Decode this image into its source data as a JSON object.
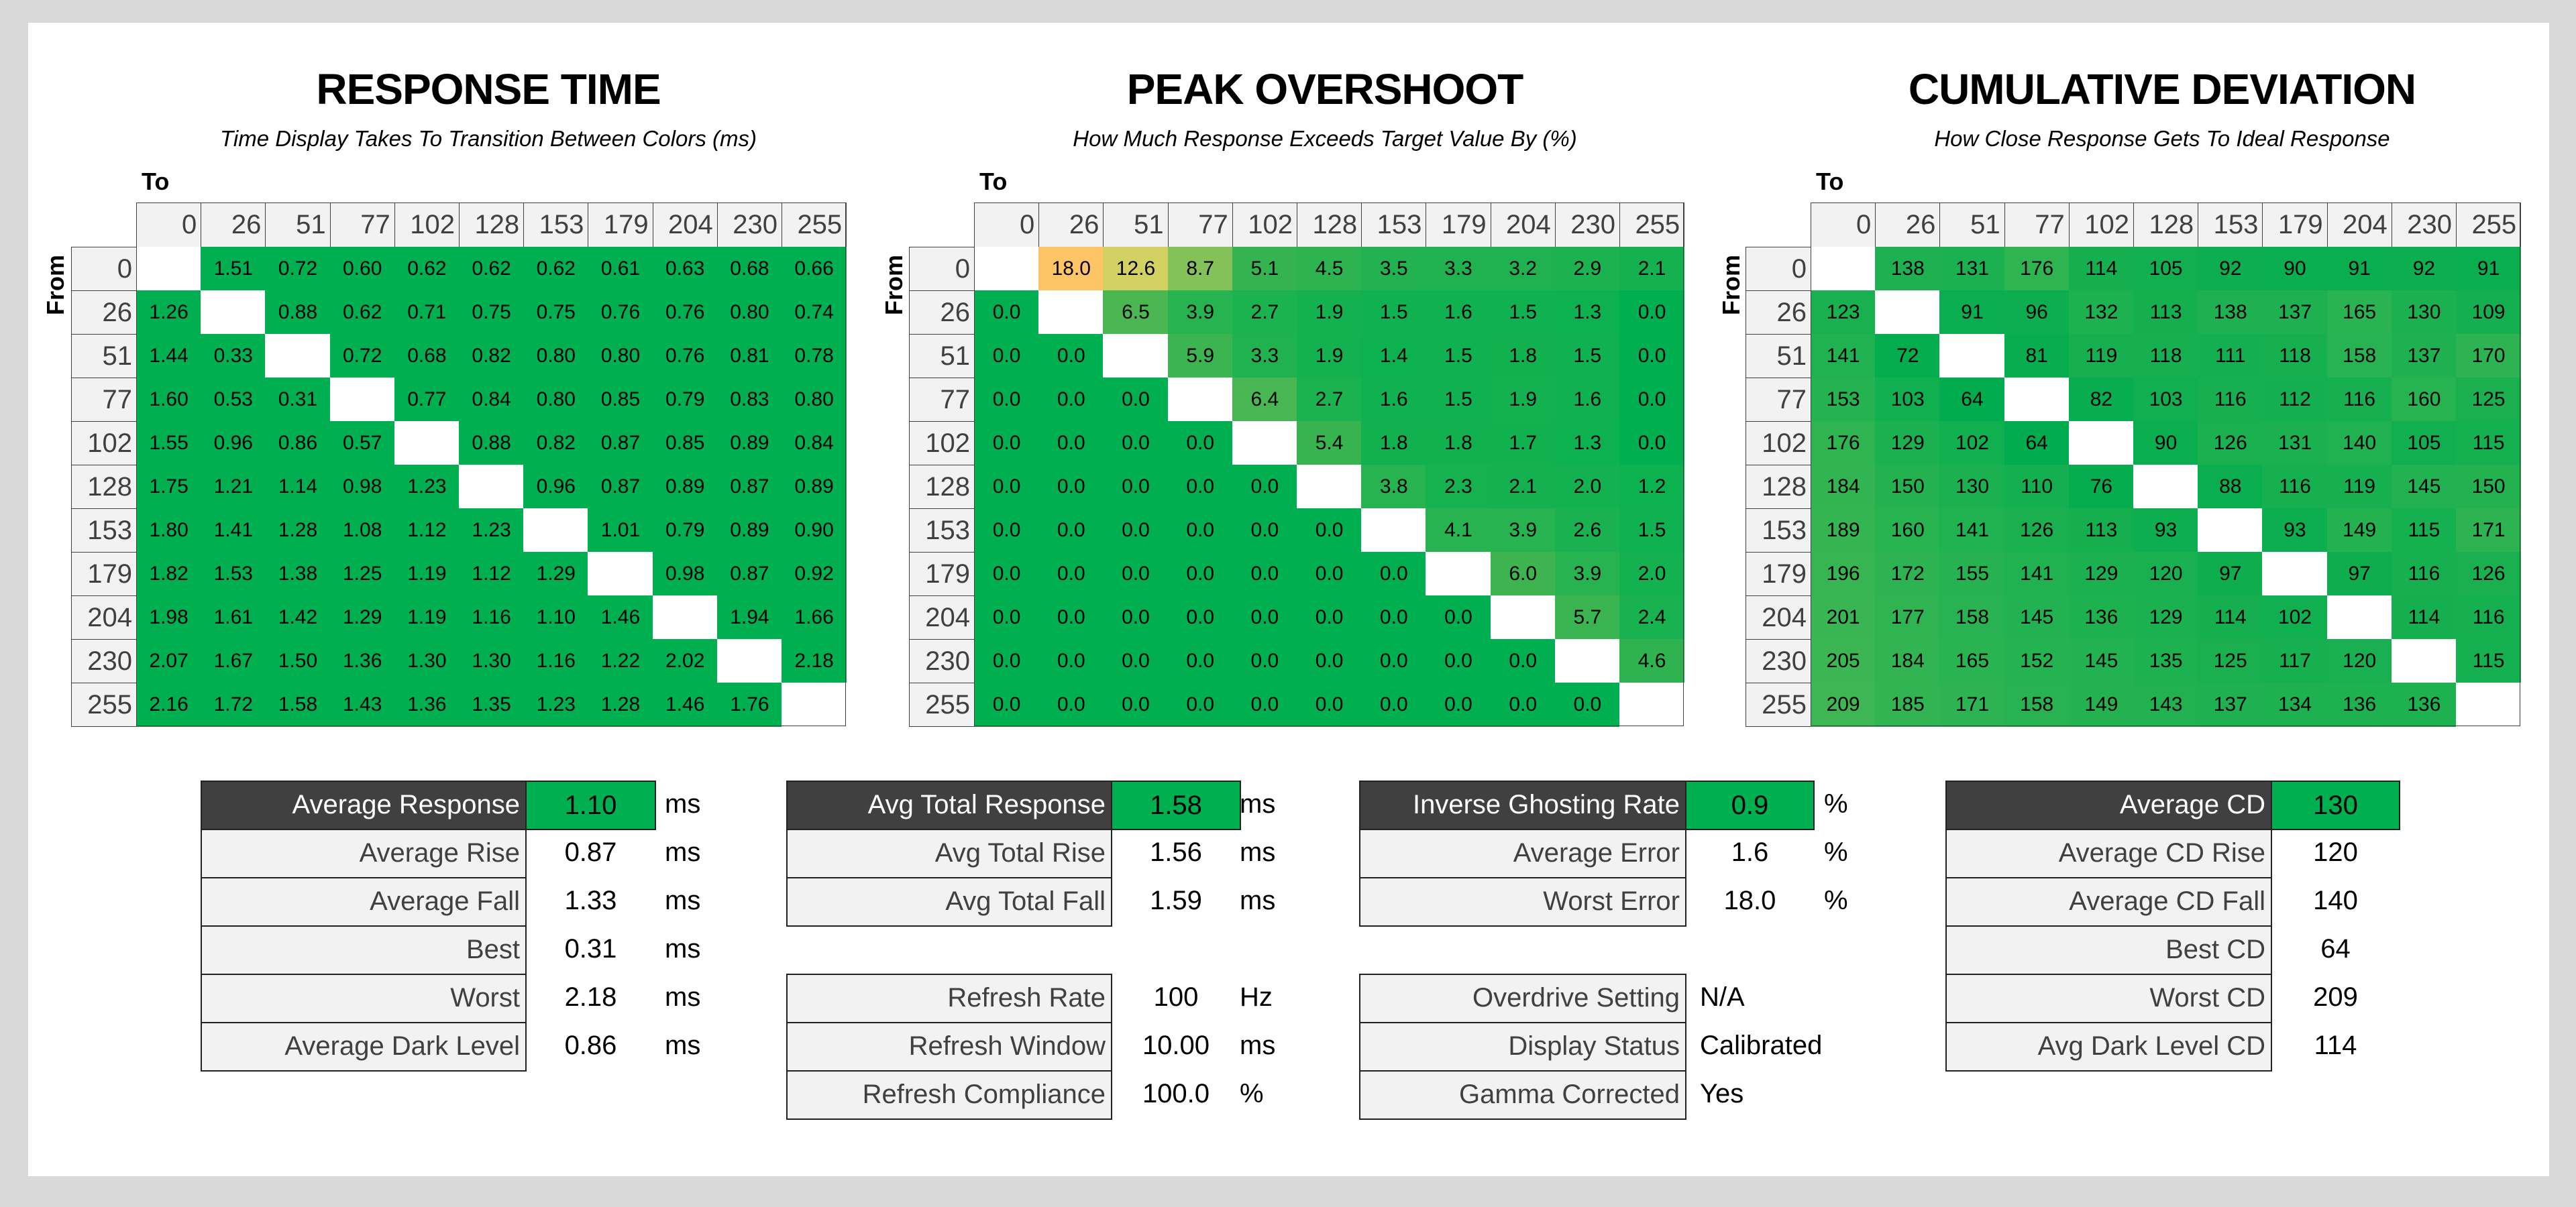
{
  "colors": {
    "background": "#d9d9d9",
    "panel": "#ffffff",
    "green": "#00b050",
    "header_fill": "#f2f2f2",
    "dark_label": "#404040",
    "overshoot_max": "#fec566",
    "cd_light": "#3db653"
  },
  "axis_labels": {
    "to": "To",
    "from": "From"
  },
  "levels": [
    "0",
    "26",
    "51",
    "77",
    "102",
    "128",
    "153",
    "179",
    "204",
    "230",
    "255"
  ],
  "sections": [
    {
      "title": "RESPONSE TIME",
      "subtitle": "Time Display Takes To Transition Between Colors (ms)",
      "color_scale": "solid",
      "matrix": [
        [
          null,
          "1.51",
          "0.72",
          "0.60",
          "0.62",
          "0.62",
          "0.62",
          "0.61",
          "0.63",
          "0.68",
          "0.66"
        ],
        [
          "1.26",
          null,
          "0.88",
          "0.62",
          "0.71",
          "0.75",
          "0.75",
          "0.76",
          "0.76",
          "0.80",
          "0.74"
        ],
        [
          "1.44",
          "0.33",
          null,
          "0.72",
          "0.68",
          "0.82",
          "0.80",
          "0.80",
          "0.76",
          "0.81",
          "0.78"
        ],
        [
          "1.60",
          "0.53",
          "0.31",
          null,
          "0.77",
          "0.84",
          "0.80",
          "0.85",
          "0.79",
          "0.83",
          "0.80"
        ],
        [
          "1.55",
          "0.96",
          "0.86",
          "0.57",
          null,
          "0.88",
          "0.82",
          "0.87",
          "0.85",
          "0.89",
          "0.84"
        ],
        [
          "1.75",
          "1.21",
          "1.14",
          "0.98",
          "1.23",
          null,
          "0.96",
          "0.87",
          "0.89",
          "0.87",
          "0.89"
        ],
        [
          "1.80",
          "1.41",
          "1.28",
          "1.08",
          "1.12",
          "1.23",
          null,
          "1.01",
          "0.79",
          "0.89",
          "0.90"
        ],
        [
          "1.82",
          "1.53",
          "1.38",
          "1.25",
          "1.19",
          "1.12",
          "1.29",
          null,
          "0.98",
          "0.87",
          "0.92"
        ],
        [
          "1.98",
          "1.61",
          "1.42",
          "1.29",
          "1.19",
          "1.16",
          "1.10",
          "1.46",
          null,
          "1.94",
          "1.66"
        ],
        [
          "2.07",
          "1.67",
          "1.50",
          "1.36",
          "1.30",
          "1.30",
          "1.16",
          "1.22",
          "2.02",
          null,
          "2.18"
        ],
        [
          "2.16",
          "1.72",
          "1.58",
          "1.43",
          "1.36",
          "1.35",
          "1.23",
          "1.28",
          "1.46",
          "1.76",
          null
        ]
      ]
    },
    {
      "title": "PEAK OVERSHOOT",
      "subtitle": "How Much Response Exceeds Target Value By (%)",
      "color_scale": "green-yellow-orange",
      "matrix": [
        [
          null,
          "18.0",
          "12.6",
          "8.7",
          "5.1",
          "4.5",
          "3.5",
          "3.3",
          "3.2",
          "2.9",
          "2.1"
        ],
        [
          "0.0",
          null,
          "6.5",
          "3.9",
          "2.7",
          "1.9",
          "1.5",
          "1.6",
          "1.5",
          "1.3",
          "0.0"
        ],
        [
          "0.0",
          "0.0",
          null,
          "5.9",
          "3.3",
          "1.9",
          "1.4",
          "1.5",
          "1.8",
          "1.5",
          "0.0"
        ],
        [
          "0.0",
          "0.0",
          "0.0",
          null,
          "6.4",
          "2.7",
          "1.6",
          "1.5",
          "1.9",
          "1.6",
          "0.0"
        ],
        [
          "0.0",
          "0.0",
          "0.0",
          "0.0",
          null,
          "5.4",
          "1.8",
          "1.8",
          "1.7",
          "1.3",
          "0.0"
        ],
        [
          "0.0",
          "0.0",
          "0.0",
          "0.0",
          "0.0",
          null,
          "3.8",
          "2.3",
          "2.1",
          "2.0",
          "1.2"
        ],
        [
          "0.0",
          "0.0",
          "0.0",
          "0.0",
          "0.0",
          "0.0",
          null,
          "4.1",
          "3.9",
          "2.6",
          "1.5"
        ],
        [
          "0.0",
          "0.0",
          "0.0",
          "0.0",
          "0.0",
          "0.0",
          "0.0",
          null,
          "6.0",
          "3.9",
          "2.0"
        ],
        [
          "0.0",
          "0.0",
          "0.0",
          "0.0",
          "0.0",
          "0.0",
          "0.0",
          "0.0",
          null,
          "5.7",
          "2.4"
        ],
        [
          "0.0",
          "0.0",
          "0.0",
          "0.0",
          "0.0",
          "0.0",
          "0.0",
          "0.0",
          "0.0",
          null,
          "4.6"
        ],
        [
          "0.0",
          "0.0",
          "0.0",
          "0.0",
          "0.0",
          "0.0",
          "0.0",
          "0.0",
          "0.0",
          "0.0",
          null
        ]
      ]
    },
    {
      "title": "CUMULATIVE DEVIATION",
      "subtitle": "How Close Response Gets To Ideal Response",
      "color_scale": "green-light",
      "matrix": [
        [
          null,
          "138",
          "131",
          "176",
          "114",
          "105",
          "92",
          "90",
          "91",
          "92",
          "91"
        ],
        [
          "123",
          null,
          "91",
          "96",
          "132",
          "113",
          "138",
          "137",
          "165",
          "130",
          "109"
        ],
        [
          "141",
          "72",
          null,
          "81",
          "119",
          "118",
          "111",
          "118",
          "158",
          "137",
          "170"
        ],
        [
          "153",
          "103",
          "64",
          null,
          "82",
          "103",
          "116",
          "112",
          "116",
          "160",
          "125"
        ],
        [
          "176",
          "129",
          "102",
          "64",
          null,
          "90",
          "126",
          "131",
          "140",
          "105",
          "115"
        ],
        [
          "184",
          "150",
          "130",
          "110",
          "76",
          null,
          "88",
          "116",
          "119",
          "145",
          "150"
        ],
        [
          "189",
          "160",
          "141",
          "126",
          "113",
          "93",
          null,
          "93",
          "149",
          "115",
          "171"
        ],
        [
          "196",
          "172",
          "155",
          "141",
          "129",
          "120",
          "97",
          null,
          "97",
          "116",
          "126"
        ],
        [
          "201",
          "177",
          "158",
          "145",
          "136",
          "129",
          "114",
          "102",
          null,
          "114",
          "116"
        ],
        [
          "205",
          "184",
          "165",
          "152",
          "145",
          "135",
          "125",
          "117",
          "120",
          null,
          "115"
        ],
        [
          "209",
          "185",
          "171",
          "158",
          "149",
          "143",
          "137",
          "134",
          "136",
          "136",
          null
        ]
      ]
    }
  ],
  "stats_tables": [
    {
      "rows": [
        {
          "label": "Average Response",
          "value": "1.10",
          "unit": "ms",
          "highlight": true
        },
        {
          "label": "Average Rise",
          "value": "0.87",
          "unit": "ms"
        },
        {
          "label": "Average Fall",
          "value": "1.33",
          "unit": "ms"
        },
        {
          "label": "Best",
          "value": "0.31",
          "unit": "ms"
        },
        {
          "label": "Worst",
          "value": "2.18",
          "unit": "ms"
        },
        {
          "label": "Average Dark Level",
          "value": "0.86",
          "unit": "ms"
        }
      ]
    },
    {
      "rows": [
        {
          "label": "Avg Total Response",
          "value": "1.58",
          "unit": "ms",
          "highlight": true
        },
        {
          "label": "Avg Total Rise",
          "value": "1.56",
          "unit": "ms"
        },
        {
          "label": "Avg Total Fall",
          "value": "1.59",
          "unit": "ms"
        },
        {
          "label": "Refresh Rate",
          "value": "100",
          "unit": "Hz"
        },
        {
          "label": "Refresh Window",
          "value": "10.00",
          "unit": "ms"
        },
        {
          "label": "Refresh Compliance",
          "value": "100.0",
          "unit": "%"
        }
      ]
    },
    {
      "rows": [
        {
          "label": "Inverse Ghosting Rate",
          "value": "0.9",
          "unit": "%",
          "highlight": true
        },
        {
          "label": "Average Error",
          "value": "1.6",
          "unit": "%"
        },
        {
          "label": "Worst Error",
          "value": "18.0",
          "unit": "%"
        },
        {
          "label": "Overdrive Setting",
          "value": "N/A",
          "unit": ""
        },
        {
          "label": "Display Status",
          "value": "Calibrated",
          "unit": ""
        },
        {
          "label": "Gamma Corrected",
          "value": "Yes",
          "unit": ""
        }
      ]
    },
    {
      "rows": [
        {
          "label": "Average CD",
          "value": "130",
          "unit": "",
          "highlight": true
        },
        {
          "label": "Average CD Rise",
          "value": "120",
          "unit": ""
        },
        {
          "label": "Average CD Fall",
          "value": "140",
          "unit": ""
        },
        {
          "label": "Best CD",
          "value": "64",
          "unit": ""
        },
        {
          "label": "Worst CD",
          "value": "209",
          "unit": ""
        },
        {
          "label": "Avg Dark Level CD",
          "value": "114",
          "unit": ""
        }
      ]
    }
  ]
}
